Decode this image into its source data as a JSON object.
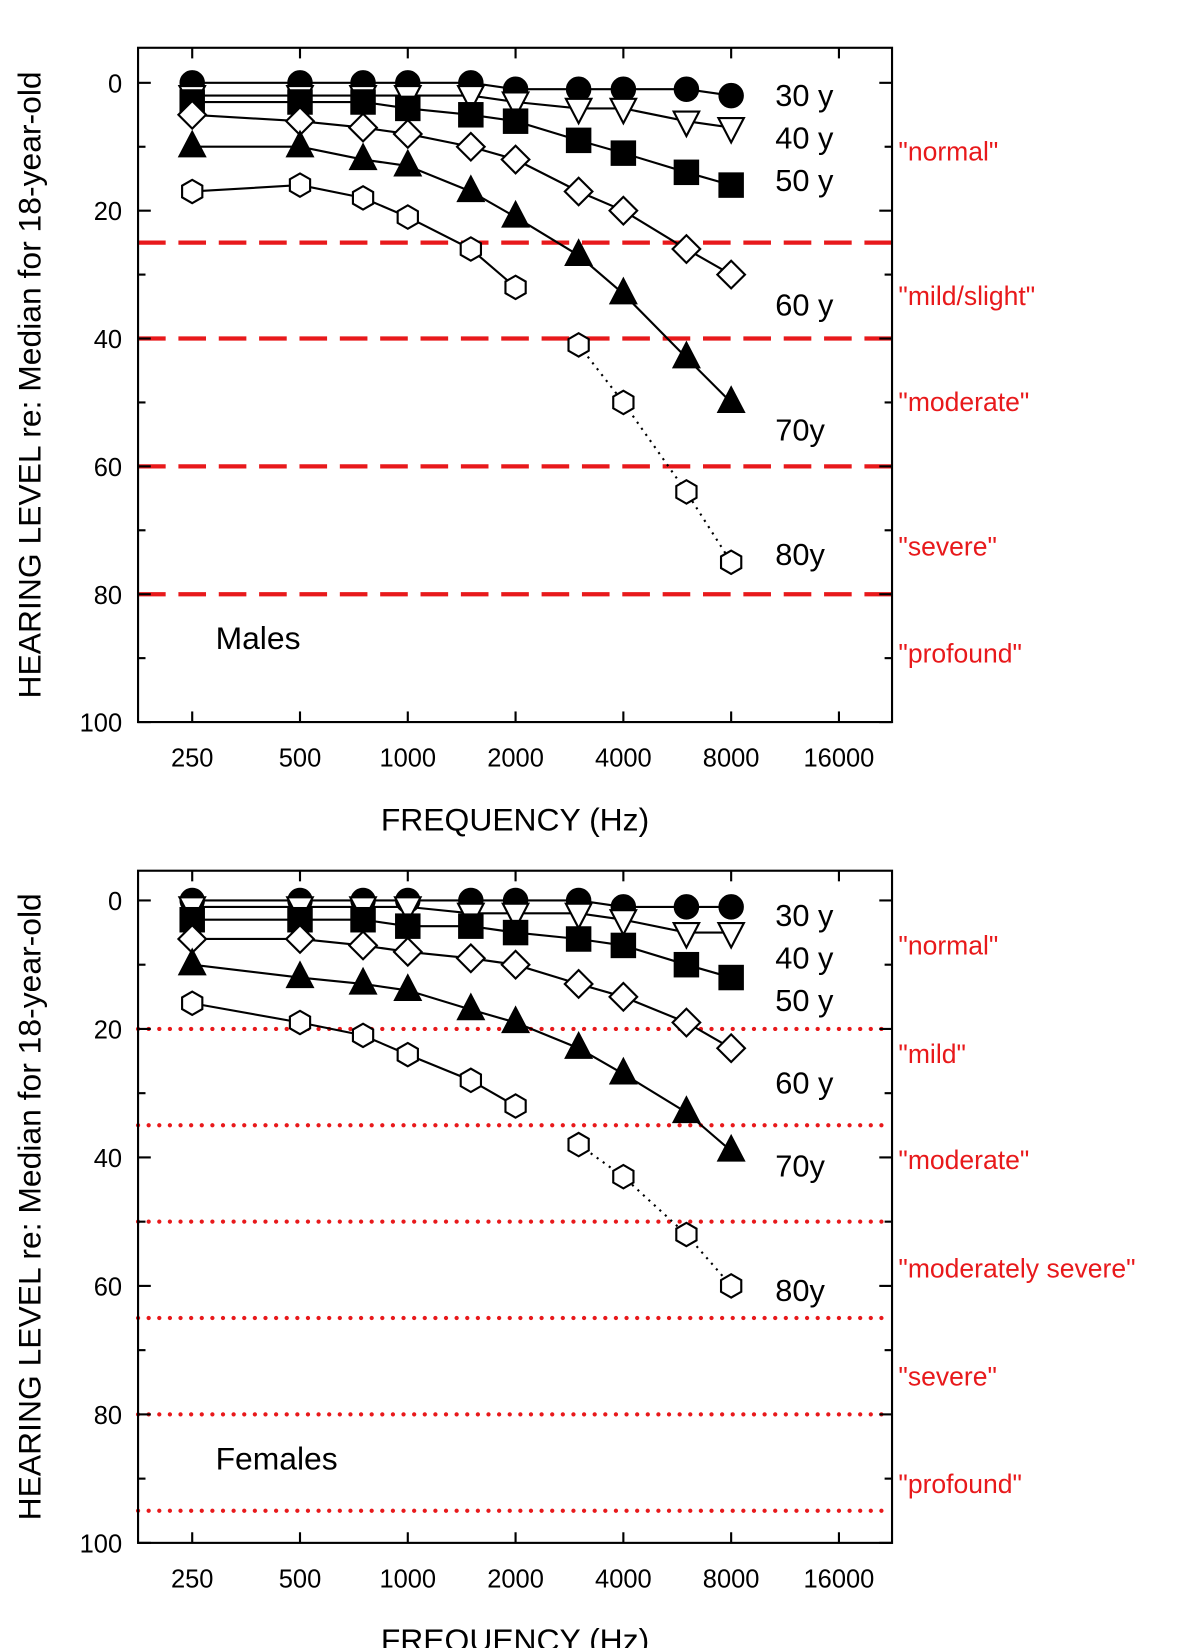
{
  "chart_data": [
    {
      "type": "line",
      "panel_label": "Males",
      "xlabel": "FREQUENCY (Hz)",
      "ylabel": "HEARING LEVEL re: Median for 18-year-old",
      "x_scale": "log2",
      "x_ticks": [
        "250",
        "500",
        "1000",
        "2000",
        "4000",
        "8000",
        "16000"
      ],
      "y_ticks": [
        "0",
        "20",
        "40",
        "60",
        "80",
        "100"
      ],
      "ylim": [
        100,
        0
      ],
      "y_inverted": true,
      "x": [
        250,
        500,
        750,
        1000,
        1500,
        2000,
        3000,
        4000,
        6000,
        8000
      ],
      "series": [
        {
          "name": "30 y",
          "marker": "filled-circle",
          "values": [
            0,
            0,
            0,
            0,
            0,
            1,
            1,
            1,
            1,
            2
          ]
        },
        {
          "name": "40 y",
          "marker": "open-inverted-triangle",
          "values": [
            2,
            2,
            2,
            2,
            2,
            3,
            4,
            4,
            6,
            7
          ]
        },
        {
          "name": "50 y",
          "marker": "filled-square",
          "values": [
            3,
            3,
            3,
            4,
            5,
            6,
            9,
            11,
            14,
            16
          ]
        },
        {
          "name": "60 y",
          "marker": "open-diamond",
          "values": [
            5,
            6,
            7,
            8,
            10,
            12,
            17,
            20,
            26,
            30
          ]
        },
        {
          "name": "70y",
          "marker": "filled-triangle",
          "values": [
            10,
            10,
            12,
            13,
            17,
            21,
            27,
            33,
            43,
            50
          ]
        },
        {
          "name": "80y",
          "marker": "open-hexagon",
          "values": [
            17,
            16,
            18,
            21,
            26,
            32,
            41,
            50,
            64,
            75
          ],
          "dotted_from_index": 6
        }
      ],
      "reference_lines": {
        "style": "dashed",
        "color": "#e8191b",
        "values": [
          25,
          40,
          60,
          80
        ]
      },
      "category_labels": [
        "\"normal\"",
        "\"mild/slight\"",
        "\"moderate\"",
        "\"severe\"",
        "\"profound\""
      ]
    },
    {
      "type": "line",
      "panel_label": "Females",
      "xlabel": "FREQUENCY (Hz)",
      "ylabel": "HEARING LEVEL re: Median for 18-year-old",
      "x_scale": "log2",
      "x_ticks": [
        "250",
        "500",
        "1000",
        "2000",
        "4000",
        "8000",
        "16000"
      ],
      "y_ticks": [
        "0",
        "20",
        "40",
        "60",
        "80",
        "100"
      ],
      "ylim": [
        100,
        0
      ],
      "y_inverted": true,
      "x": [
        250,
        500,
        750,
        1000,
        1500,
        2000,
        3000,
        4000,
        6000,
        8000
      ],
      "series": [
        {
          "name": "30 y",
          "marker": "filled-circle",
          "values": [
            0,
            0,
            0,
            0,
            0,
            0,
            0,
            1,
            1,
            1
          ]
        },
        {
          "name": "40 y",
          "marker": "open-inverted-triangle",
          "values": [
            1,
            1,
            1,
            1,
            2,
            2,
            2,
            3,
            5,
            5
          ]
        },
        {
          "name": "50 y",
          "marker": "filled-square",
          "values": [
            3,
            3,
            3,
            4,
            4,
            5,
            6,
            7,
            10,
            12
          ]
        },
        {
          "name": "60 y",
          "marker": "open-diamond",
          "values": [
            6,
            6,
            7,
            8,
            9,
            10,
            13,
            15,
            19,
            23
          ]
        },
        {
          "name": "70y",
          "marker": "filled-triangle",
          "values": [
            10,
            12,
            13,
            14,
            17,
            19,
            23,
            27,
            33,
            39
          ]
        },
        {
          "name": "80y",
          "marker": "open-hexagon",
          "values": [
            16,
            19,
            21,
            24,
            28,
            32,
            38,
            43,
            52,
            60
          ],
          "dotted_from_index": 6
        }
      ],
      "reference_lines": {
        "style": "dotted",
        "color": "#e8191b",
        "values": [
          20,
          35,
          50,
          65,
          80,
          95
        ]
      },
      "category_labels": [
        "\"normal\"",
        "\"mild\"",
        "\"moderate\"",
        "\"moderately severe\"",
        "\"severe\"",
        "\"profound\""
      ]
    }
  ]
}
